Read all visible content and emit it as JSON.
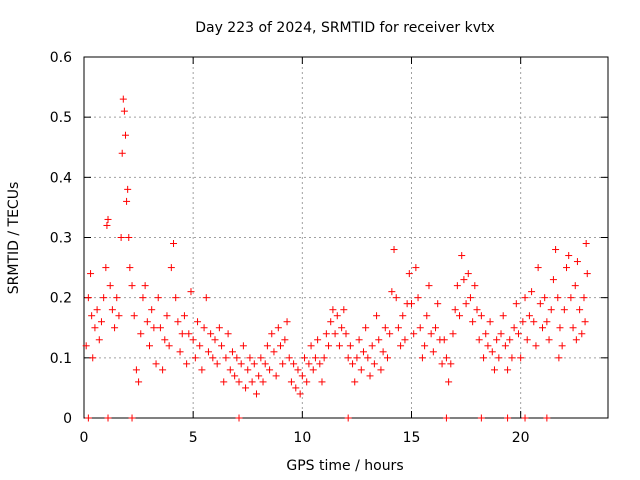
{
  "chart_data": {
    "type": "scatter",
    "title": "Day 223 of 2024, SRMTID for receiver kvtx",
    "xlabel": "GPS time / hours",
    "ylabel": "SRMTID / TECUs",
    "xlim": [
      0,
      24
    ],
    "ylim": [
      0,
      0.6
    ],
    "xticks": [
      0,
      5,
      10,
      15,
      20
    ],
    "xtick_labels": [
      "0",
      "5",
      "10",
      "15",
      "20"
    ],
    "yticks": [
      0,
      0.1,
      0.2,
      0.3,
      0.4,
      0.5,
      0.6
    ],
    "ytick_labels": [
      "0",
      "0.1",
      "0.2",
      "0.3",
      "0.4",
      "0.5",
      "0.6"
    ],
    "grid": true,
    "marker": "plus",
    "color": "#ff0000",
    "series": [
      {
        "name": "SRMTID",
        "points": [
          [
            0.1,
            0.12
          ],
          [
            0.2,
            0.2
          ],
          [
            0.3,
            0.24
          ],
          [
            0.35,
            0.17
          ],
          [
            0.4,
            0.1
          ],
          [
            0.5,
            0.15
          ],
          [
            0.6,
            0.18
          ],
          [
            0.7,
            0.13
          ],
          [
            0.8,
            0.16
          ],
          [
            0.9,
            0.2
          ],
          [
            1.0,
            0.25
          ],
          [
            1.05,
            0.32
          ],
          [
            1.1,
            0.33
          ],
          [
            1.2,
            0.22
          ],
          [
            1.3,
            0.18
          ],
          [
            1.4,
            0.15
          ],
          [
            1.5,
            0.2
          ],
          [
            1.6,
            0.17
          ],
          [
            1.7,
            0.3
          ],
          [
            1.75,
            0.44
          ],
          [
            1.8,
            0.53
          ],
          [
            1.85,
            0.51
          ],
          [
            1.9,
            0.47
          ],
          [
            1.95,
            0.36
          ],
          [
            2.0,
            0.38
          ],
          [
            2.05,
            0.3
          ],
          [
            2.1,
            0.25
          ],
          [
            2.2,
            0.22
          ],
          [
            2.3,
            0.17
          ],
          [
            2.4,
            0.08
          ],
          [
            2.5,
            0.06
          ],
          [
            2.6,
            0.14
          ],
          [
            2.7,
            0.2
          ],
          [
            2.8,
            0.22
          ],
          [
            2.9,
            0.16
          ],
          [
            3.0,
            0.12
          ],
          [
            3.1,
            0.18
          ],
          [
            3.2,
            0.15
          ],
          [
            3.3,
            0.09
          ],
          [
            3.4,
            0.2
          ],
          [
            3.5,
            0.15
          ],
          [
            3.6,
            0.08
          ],
          [
            3.7,
            0.13
          ],
          [
            3.8,
            0.17
          ],
          [
            3.9,
            0.12
          ],
          [
            4.0,
            0.25
          ],
          [
            4.1,
            0.29
          ],
          [
            4.2,
            0.2
          ],
          [
            4.3,
            0.16
          ],
          [
            4.4,
            0.11
          ],
          [
            4.5,
            0.14
          ],
          [
            4.6,
            0.17
          ],
          [
            4.7,
            0.09
          ],
          [
            4.8,
            0.14
          ],
          [
            4.9,
            0.21
          ],
          [
            5.0,
            0.13
          ],
          [
            5.1,
            0.1
          ],
          [
            5.2,
            0.16
          ],
          [
            5.3,
            0.12
          ],
          [
            5.4,
            0.08
          ],
          [
            5.5,
            0.15
          ],
          [
            5.6,
            0.2
          ],
          [
            5.7,
            0.11
          ],
          [
            5.8,
            0.14
          ],
          [
            5.9,
            0.1
          ],
          [
            6.0,
            0.13
          ],
          [
            6.1,
            0.09
          ],
          [
            6.2,
            0.15
          ],
          [
            6.3,
            0.12
          ],
          [
            6.4,
            0.06
          ],
          [
            6.5,
            0.1
          ],
          [
            6.6,
            0.14
          ],
          [
            6.7,
            0.08
          ],
          [
            6.8,
            0.11
          ],
          [
            6.9,
            0.07
          ],
          [
            7.0,
            0.1
          ],
          [
            7.1,
            0.06
          ],
          [
            7.2,
            0.09
          ],
          [
            7.3,
            0.12
          ],
          [
            7.4,
            0.05
          ],
          [
            7.5,
            0.08
          ],
          [
            7.6,
            0.1
          ],
          [
            7.7,
            0.06
          ],
          [
            7.8,
            0.09
          ],
          [
            7.9,
            0.04
          ],
          [
            8.0,
            0.07
          ],
          [
            8.1,
            0.1
          ],
          [
            8.2,
            0.06
          ],
          [
            8.3,
            0.09
          ],
          [
            8.4,
            0.12
          ],
          [
            8.5,
            0.08
          ],
          [
            8.6,
            0.14
          ],
          [
            8.7,
            0.11
          ],
          [
            8.8,
            0.07
          ],
          [
            8.9,
            0.15
          ],
          [
            9.0,
            0.12
          ],
          [
            9.1,
            0.09
          ],
          [
            9.2,
            0.13
          ],
          [
            9.3,
            0.16
          ],
          [
            9.4,
            0.1
          ],
          [
            9.5,
            0.06
          ],
          [
            9.6,
            0.09
          ],
          [
            9.7,
            0.05
          ],
          [
            9.8,
            0.08
          ],
          [
            9.9,
            0.04
          ],
          [
            10.0,
            0.07
          ],
          [
            10.1,
            0.1
          ],
          [
            10.2,
            0.06
          ],
          [
            10.3,
            0.09
          ],
          [
            10.4,
            0.12
          ],
          [
            10.5,
            0.08
          ],
          [
            10.6,
            0.1
          ],
          [
            10.7,
            0.13
          ],
          [
            10.8,
            0.09
          ],
          [
            10.9,
            0.06
          ],
          [
            11.0,
            0.1
          ],
          [
            11.1,
            0.14
          ],
          [
            11.2,
            0.12
          ],
          [
            11.3,
            0.16
          ],
          [
            11.4,
            0.18
          ],
          [
            11.5,
            0.14
          ],
          [
            11.6,
            0.17
          ],
          [
            11.7,
            0.12
          ],
          [
            11.8,
            0.15
          ],
          [
            11.9,
            0.18
          ],
          [
            12.0,
            0.14
          ],
          [
            12.1,
            0.1
          ],
          [
            12.2,
            0.12
          ],
          [
            12.3,
            0.09
          ],
          [
            12.4,
            0.06
          ],
          [
            12.5,
            0.1
          ],
          [
            12.6,
            0.13
          ],
          [
            12.7,
            0.08
          ],
          [
            12.8,
            0.11
          ],
          [
            12.9,
            0.15
          ],
          [
            13.0,
            0.1
          ],
          [
            13.1,
            0.07
          ],
          [
            13.2,
            0.12
          ],
          [
            13.3,
            0.09
          ],
          [
            13.4,
            0.17
          ],
          [
            13.5,
            0.13
          ],
          [
            13.6,
            0.08
          ],
          [
            13.7,
            0.11
          ],
          [
            13.8,
            0.15
          ],
          [
            13.9,
            0.1
          ],
          [
            14.0,
            0.14
          ],
          [
            14.1,
            0.21
          ],
          [
            14.2,
            0.28
          ],
          [
            14.3,
            0.2
          ],
          [
            14.4,
            0.15
          ],
          [
            14.5,
            0.12
          ],
          [
            14.6,
            0.17
          ],
          [
            14.7,
            0.13
          ],
          [
            14.8,
            0.19
          ],
          [
            14.9,
            0.24
          ],
          [
            15.0,
            0.19
          ],
          [
            15.1,
            0.14
          ],
          [
            15.2,
            0.25
          ],
          [
            15.3,
            0.2
          ],
          [
            15.4,
            0.15
          ],
          [
            15.5,
            0.1
          ],
          [
            15.6,
            0.12
          ],
          [
            15.7,
            0.17
          ],
          [
            15.8,
            0.22
          ],
          [
            15.9,
            0.14
          ],
          [
            16.0,
            0.11
          ],
          [
            16.1,
            0.15
          ],
          [
            16.2,
            0.19
          ],
          [
            16.3,
            0.13
          ],
          [
            16.4,
            0.09
          ],
          [
            16.5,
            0.13
          ],
          [
            16.6,
            0.1
          ],
          [
            16.7,
            0.06
          ],
          [
            16.8,
            0.09
          ],
          [
            16.9,
            0.14
          ],
          [
            17.0,
            0.18
          ],
          [
            17.1,
            0.22
          ],
          [
            17.2,
            0.17
          ],
          [
            17.3,
            0.27
          ],
          [
            17.4,
            0.23
          ],
          [
            17.5,
            0.19
          ],
          [
            17.6,
            0.24
          ],
          [
            17.7,
            0.2
          ],
          [
            17.8,
            0.16
          ],
          [
            17.9,
            0.22
          ],
          [
            18.0,
            0.18
          ],
          [
            18.1,
            0.13
          ],
          [
            18.2,
            0.17
          ],
          [
            18.3,
            0.1
          ],
          [
            18.4,
            0.14
          ],
          [
            18.5,
            0.12
          ],
          [
            18.6,
            0.16
          ],
          [
            18.7,
            0.11
          ],
          [
            18.8,
            0.08
          ],
          [
            18.9,
            0.13
          ],
          [
            19.0,
            0.1
          ],
          [
            19.1,
            0.14
          ],
          [
            19.2,
            0.17
          ],
          [
            19.3,
            0.12
          ],
          [
            19.4,
            0.08
          ],
          [
            19.5,
            0.13
          ],
          [
            19.6,
            0.1
          ],
          [
            19.7,
            0.15
          ],
          [
            19.8,
            0.19
          ],
          [
            19.9,
            0.14
          ],
          [
            20.0,
            0.1
          ],
          [
            20.1,
            0.16
          ],
          [
            20.2,
            0.2
          ],
          [
            20.3,
            0.13
          ],
          [
            20.4,
            0.17
          ],
          [
            20.5,
            0.21
          ],
          [
            20.6,
            0.16
          ],
          [
            20.7,
            0.12
          ],
          [
            20.8,
            0.25
          ],
          [
            20.9,
            0.19
          ],
          [
            21.0,
            0.15
          ],
          [
            21.1,
            0.2
          ],
          [
            21.2,
            0.16
          ],
          [
            21.3,
            0.13
          ],
          [
            21.4,
            0.18
          ],
          [
            21.5,
            0.23
          ],
          [
            21.6,
            0.28
          ],
          [
            21.7,
            0.2
          ],
          [
            21.8,
            0.15
          ],
          [
            21.9,
            0.12
          ],
          [
            22.0,
            0.18
          ],
          [
            22.1,
            0.25
          ],
          [
            22.2,
            0.27
          ],
          [
            22.3,
            0.2
          ],
          [
            22.4,
            0.15
          ],
          [
            22.5,
            0.22
          ],
          [
            22.6,
            0.26
          ],
          [
            22.7,
            0.18
          ],
          [
            22.8,
            0.14
          ],
          [
            22.9,
            0.2
          ],
          [
            23.0,
            0.29
          ],
          [
            23.05,
            0.24
          ],
          [
            22.95,
            0.16
          ],
          [
            22.55,
            0.13
          ],
          [
            21.75,
            0.1
          ],
          [
            0.2,
            0.0
          ],
          [
            1.1,
            0.0
          ],
          [
            2.2,
            0.0
          ],
          [
            7.1,
            0.0
          ],
          [
            12.1,
            0.0
          ],
          [
            16.6,
            0.0
          ],
          [
            18.2,
            0.0
          ],
          [
            19.4,
            0.0
          ],
          [
            20.2,
            0.0
          ],
          [
            21.2,
            0.0
          ]
        ]
      }
    ]
  }
}
